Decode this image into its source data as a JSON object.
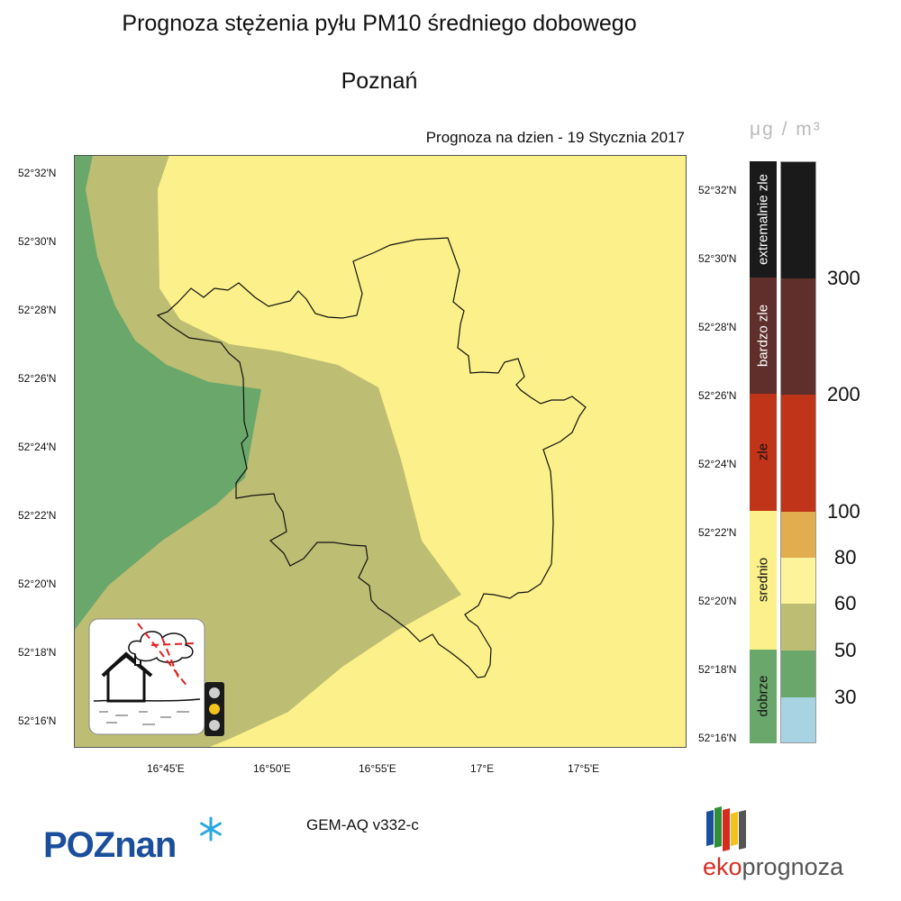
{
  "title": "Prognoza stężenia pyłu PM10 średniego dobowego",
  "subtitle": "Poznań",
  "forecast_date": "Prognoza na dzien -  19 Stycznia 2017",
  "unit_label": "μg / m³",
  "model_version": "GEM-AQ v332-c",
  "lat_labels": [
    "52°32'N",
    "52°30'N",
    "52°28'N",
    "52°26'N",
    "52°24'N",
    "52°22'N",
    "52°20'N",
    "52°18'N",
    "52°16'N"
  ],
  "lon_labels": [
    "16°45'E",
    "16°50'E",
    "16°55'E",
    "17°E",
    "17°5'E"
  ],
  "classes": [
    {
      "label": "extremalnie zle",
      "color": "#1a1a1a"
    },
    {
      "label": "bardzo zle",
      "color": "#5e2f2b"
    },
    {
      "label": "zle",
      "color": "#c0341a"
    },
    {
      "label": "srednio",
      "color": "#fbf08a"
    },
    {
      "label": "dobrze",
      "color": "#6aa76a"
    }
  ],
  "scale_values": [
    "300",
    "200",
    "100",
    "80",
    "60",
    "50",
    "30"
  ],
  "scale_colors": {
    "above_300": "#1a1a1a",
    "200_300": "#5e2f2b",
    "100_200": "#c0341a",
    "80_100": "#e1ad4e",
    "60_80": "#fcf39a",
    "50_60": "#bdbd74",
    "30_50": "#6aa76a",
    "below_30": "#a8d3e3"
  },
  "map_colors": {
    "yellow": "#fbf08a",
    "olive": "#bdbd74",
    "green": "#6aa76a"
  },
  "logos": {
    "poznan": "POZnan",
    "eko": "eko",
    "prognoza": "prognoza"
  },
  "icons": [
    "house-smog-icon",
    "traffic-light-icon",
    "asterisk-icon"
  ]
}
